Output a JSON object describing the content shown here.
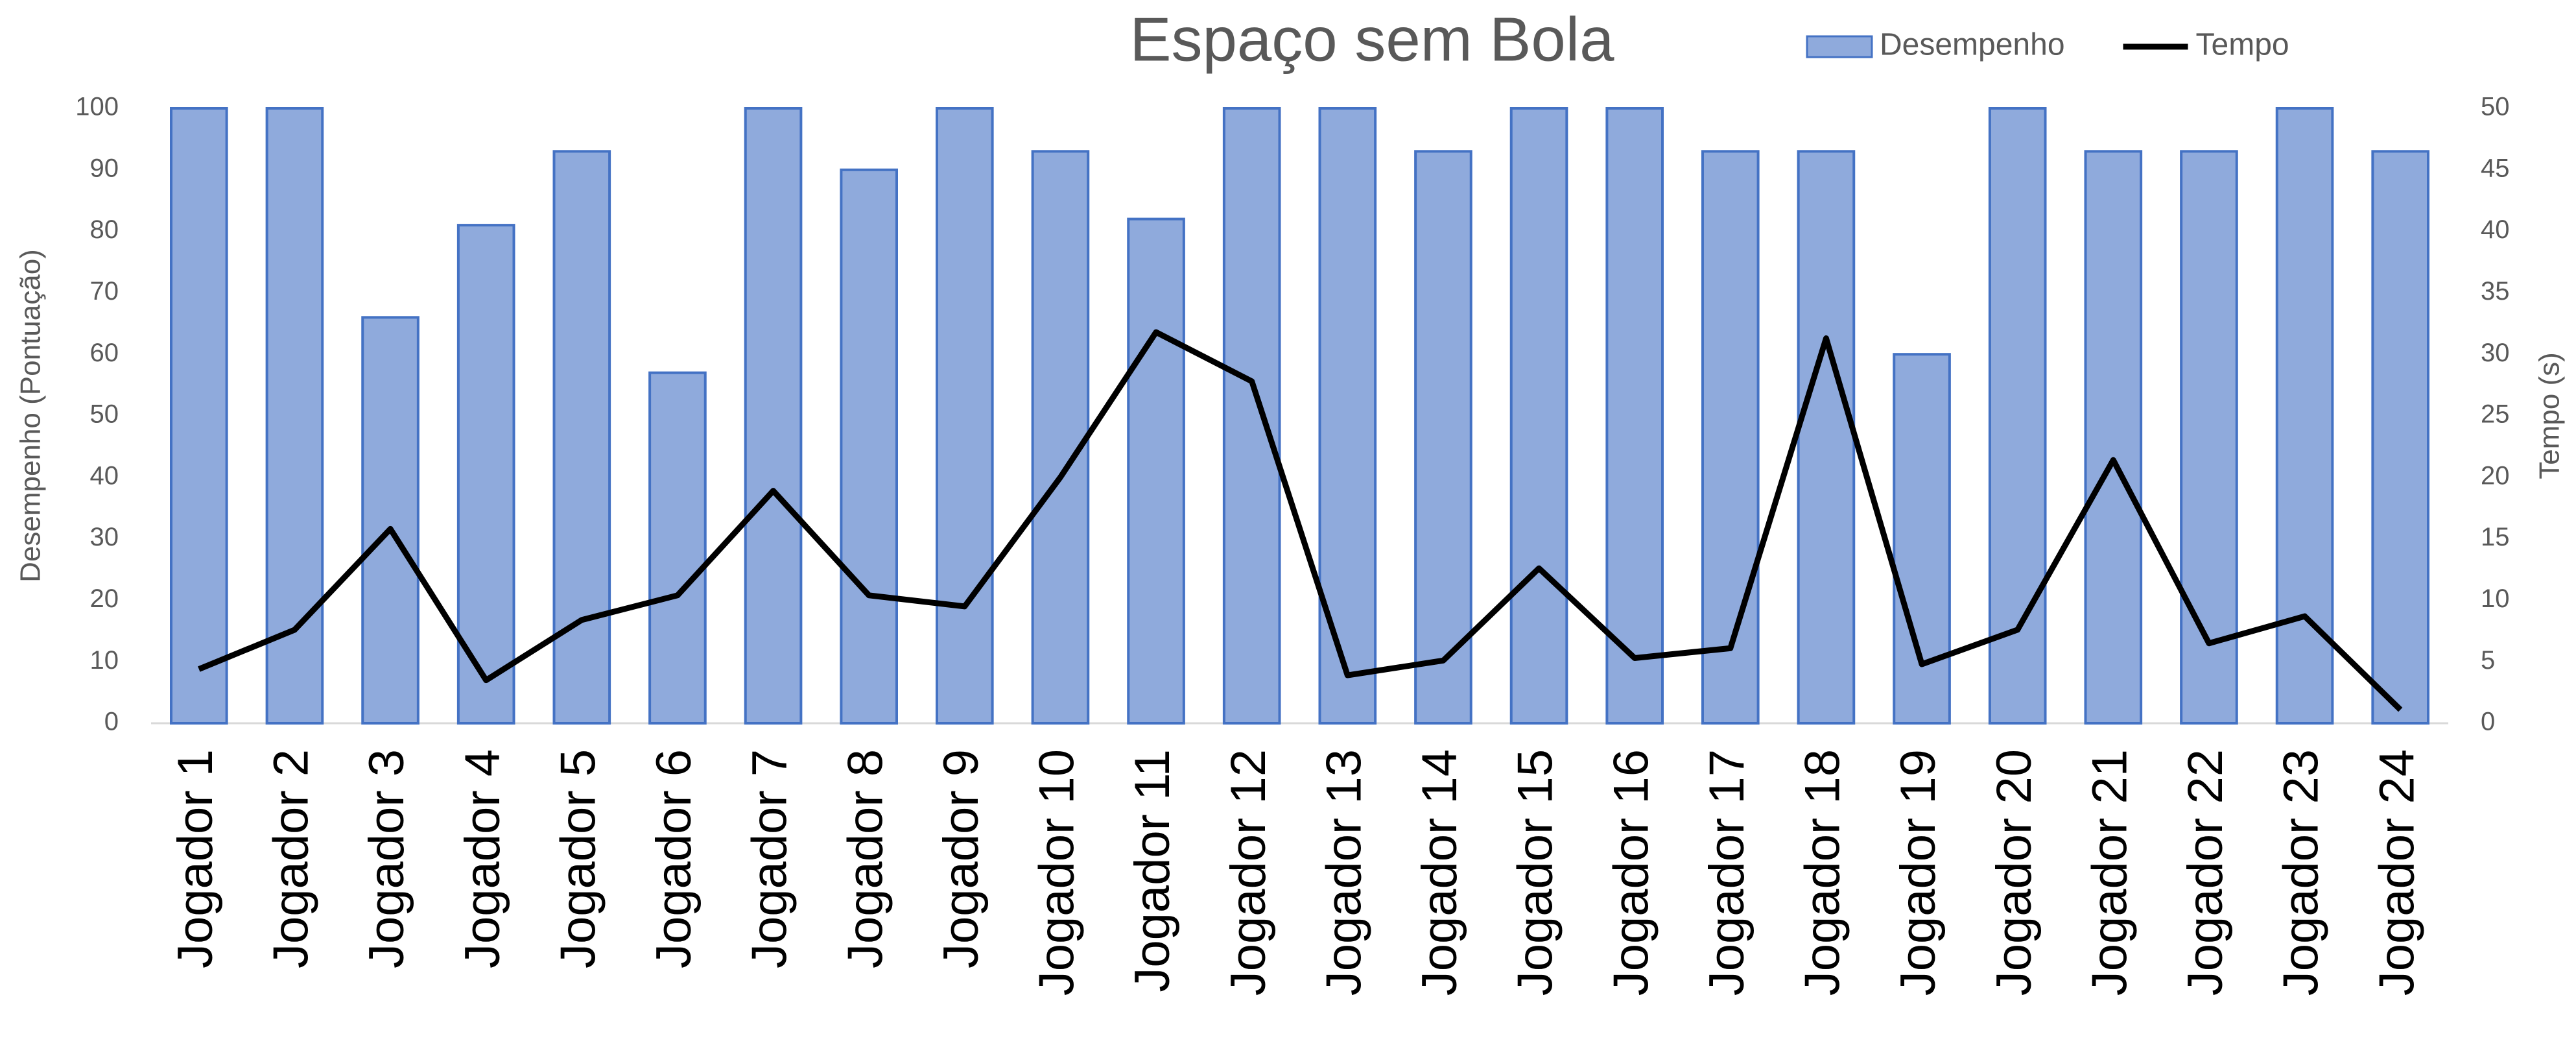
{
  "chart_data": {
    "type": "bar_line",
    "title": "Espaço sem Bola",
    "y_label": "Desempenho (Pontuação)",
    "y2_label": "Tempo (s)",
    "categories": [
      "Jogador 1",
      "Jogador 2",
      "Jogador 3",
      "Jogador 4",
      "Jogador 5",
      "Jogador 6",
      "Jogador 7",
      "Jogador 8",
      "Jogador 9",
      "Jogador 10",
      "Jogador 11",
      "Jogador 12",
      "Jogador 13",
      "Jogador 14",
      "Jogador 15",
      "Jogador 16",
      "Jogador 17",
      "Jogador 18",
      "Jogador 19",
      "Jogador 20",
      "Jogador 21",
      "Jogador 22",
      "Jogador 23",
      "Jogador 24"
    ],
    "series": [
      {
        "name": "Desempenho",
        "type": "bar",
        "color": "#8faadc",
        "edge": "#4472c4",
        "values": [
          100,
          100,
          66,
          81,
          93,
          57,
          100,
          90,
          100,
          93,
          82,
          100,
          100,
          93,
          100,
          100,
          93,
          93,
          60,
          100,
          93,
          93,
          100,
          93
        ]
      },
      {
        "name": "Tempo",
        "type": "line",
        "axis": "y2",
        "color": "#000000",
        "values": [
          4.4,
          7.6,
          15.8,
          3.5,
          8.4,
          10.4,
          18.9,
          10.4,
          9.5,
          20,
          31.8,
          27.8,
          3.9,
          5.1,
          12.6,
          5.3,
          6.1,
          31.3,
          4.8,
          7.6,
          21.4,
          6.5,
          8.7,
          1.1
        ]
      }
    ],
    "ylim": [
      0,
      100
    ],
    "yticks": [
      0,
      10,
      20,
      30,
      40,
      50,
      60,
      70,
      80,
      90,
      100
    ],
    "y2lim": [
      0,
      50
    ],
    "y2ticks": [
      0,
      5,
      10,
      15,
      20,
      25,
      30,
      35,
      40,
      45,
      50
    ],
    "legend": "top-right"
  }
}
